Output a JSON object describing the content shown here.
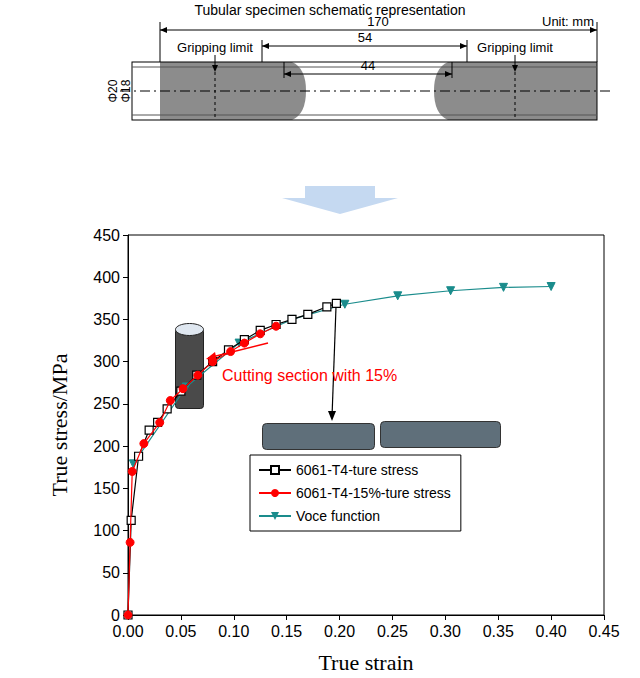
{
  "schematic": {
    "title": "Tubular specimen schematic representation",
    "unit": "Unit: mm",
    "total_length": "170",
    "middle_length": "54",
    "gauge_length": "44",
    "outer_diameter": "Φ20",
    "inner_diameter": "Φ18",
    "gripping_labels": [
      "Gripping limit",
      "Gripping limit"
    ]
  },
  "chart_data": {
    "type": "line",
    "x_label": "True strain",
    "y_label": "True stress/MPa",
    "annotations": [
      "Cutting section with 15%"
    ],
    "xlim": [
      0,
      0.45
    ],
    "xticks": [
      {
        "value": 0,
        "label": "0.00"
      },
      {
        "value": 0.05,
        "label": "0.05"
      },
      {
        "value": 0.1,
        "label": "0.10"
      },
      {
        "value": 0.15,
        "label": "0.15"
      },
      {
        "value": 0.2,
        "label": "0.20"
      },
      {
        "value": 0.25,
        "label": "0.25"
      },
      {
        "value": 0.3,
        "label": "0.30"
      },
      {
        "value": 0.35,
        "label": "0.35"
      },
      {
        "value": 0.4,
        "label": "0.40"
      },
      {
        "value": 0.45,
        "label": "0.45"
      }
    ],
    "ylim": [
      0,
      450
    ],
    "yticks": [
      0,
      50,
      100,
      150,
      200,
      250,
      300,
      350,
      400,
      450
    ],
    "grid": false,
    "legend": "lower center",
    "series": [
      {
        "name": "Voce function",
        "color": "#1a8c8c",
        "marker": "triangle-down",
        "line_style": "solid",
        "x": [
          0.005,
          0.055,
          0.105,
          0.155,
          0.205,
          0.255,
          0.305,
          0.355,
          0.4
        ],
        "values": [
          179,
          270,
          322,
          350,
          368,
          378,
          384,
          388,
          389
        ]
      },
      {
        "name": "6061-T4-ture stress",
        "color": "#000000",
        "marker": "square-open",
        "line_style": "solid",
        "x": [
          0,
          0.003,
          0.01,
          0.02,
          0.028,
          0.037,
          0.05,
          0.065,
          0.08,
          0.095,
          0.11,
          0.125,
          0.14,
          0.155,
          0.17,
          0.188,
          0.197
        ],
        "values": [
          0,
          112,
          188,
          219,
          228,
          244,
          265,
          284,
          300,
          314,
          326,
          337,
          344,
          350,
          356,
          365,
          369
        ]
      },
      {
        "name": "6061-T4-15%-ture stress",
        "color": "#ff0000",
        "marker": "circle",
        "line_style": "solid",
        "x": [
          0,
          0.002,
          0.004,
          0.015,
          0.03,
          0.04,
          0.052,
          0.066,
          0.08,
          0.097,
          0.11,
          0.125,
          0.14
        ],
        "values": [
          0,
          86,
          170,
          203,
          228,
          254,
          268,
          284,
          300,
          312,
          322,
          333,
          342
        ]
      }
    ]
  }
}
